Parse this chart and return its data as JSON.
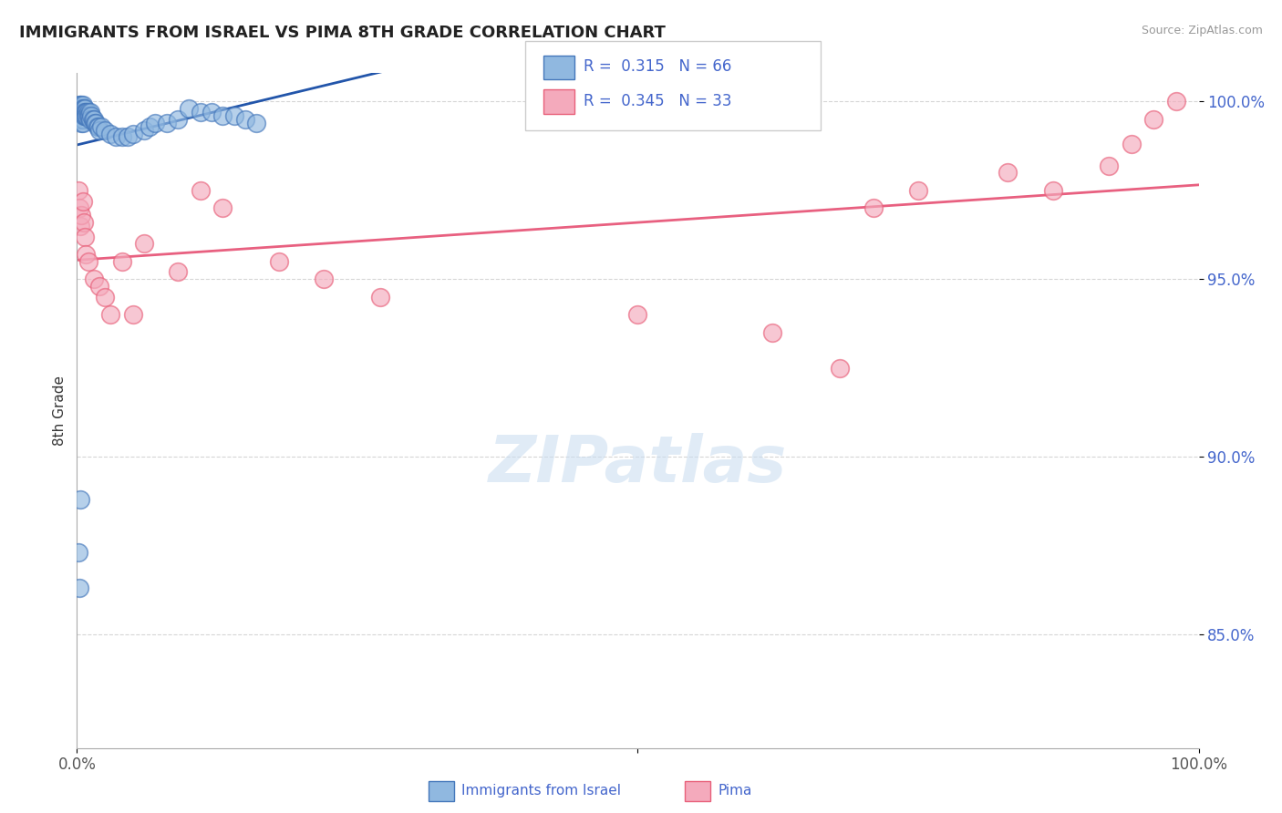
{
  "title": "IMMIGRANTS FROM ISRAEL VS PIMA 8TH GRADE CORRELATION CHART",
  "source": "Source: ZipAtlas.com",
  "ylabel": "8th Grade",
  "legend_label1": "Immigrants from Israel",
  "legend_label2": "Pima",
  "R1": 0.315,
  "N1": 66,
  "R2": 0.345,
  "N2": 33,
  "xlim": [
    0.0,
    1.0
  ],
  "ylim": [
    0.818,
    1.008
  ],
  "ytick_positions": [
    0.85,
    0.9,
    0.95,
    1.0
  ],
  "ytick_labels": [
    "85.0%",
    "90.0%",
    "95.0%",
    "100.0%"
  ],
  "color_blue": "#90B8E0",
  "color_pink": "#F4AABC",
  "edge_blue": "#4477BB",
  "edge_pink": "#E8607A",
  "trendline_blue": "#2255AA",
  "trendline_pink": "#E86080",
  "background": "#FFFFFF",
  "blue_x": [
    0.001,
    0.001,
    0.002,
    0.002,
    0.002,
    0.003,
    0.003,
    0.003,
    0.003,
    0.004,
    0.004,
    0.004,
    0.004,
    0.004,
    0.004,
    0.005,
    0.005,
    0.005,
    0.005,
    0.005,
    0.005,
    0.006,
    0.006,
    0.006,
    0.007,
    0.007,
    0.007,
    0.008,
    0.008,
    0.009,
    0.009,
    0.01,
    0.01,
    0.011,
    0.012,
    0.012,
    0.013,
    0.014,
    0.015,
    0.016,
    0.017,
    0.018,
    0.019,
    0.02,
    0.022,
    0.025,
    0.03,
    0.035,
    0.04,
    0.045,
    0.05,
    0.06,
    0.065,
    0.07,
    0.08,
    0.09,
    0.1,
    0.11,
    0.12,
    0.13,
    0.14,
    0.15,
    0.16,
    0.001,
    0.002,
    0.003
  ],
  "blue_y": [
    0.998,
    0.996,
    0.999,
    0.997,
    0.995,
    0.999,
    0.998,
    0.997,
    0.996,
    0.999,
    0.998,
    0.997,
    0.996,
    0.995,
    0.994,
    0.999,
    0.998,
    0.997,
    0.996,
    0.995,
    0.994,
    0.998,
    0.997,
    0.996,
    0.998,
    0.997,
    0.996,
    0.997,
    0.996,
    0.997,
    0.996,
    0.997,
    0.996,
    0.996,
    0.997,
    0.995,
    0.996,
    0.995,
    0.995,
    0.994,
    0.994,
    0.993,
    0.993,
    0.992,
    0.993,
    0.992,
    0.991,
    0.99,
    0.99,
    0.99,
    0.991,
    0.992,
    0.993,
    0.994,
    0.994,
    0.995,
    0.998,
    0.997,
    0.997,
    0.996,
    0.996,
    0.995,
    0.994,
    0.873,
    0.863,
    0.888
  ],
  "pink_x": [
    0.001,
    0.002,
    0.003,
    0.004,
    0.005,
    0.006,
    0.007,
    0.008,
    0.01,
    0.015,
    0.02,
    0.025,
    0.03,
    0.04,
    0.05,
    0.06,
    0.09,
    0.11,
    0.13,
    0.18,
    0.22,
    0.27,
    0.5,
    0.62,
    0.68,
    0.71,
    0.75,
    0.83,
    0.87,
    0.92,
    0.94,
    0.96,
    0.98
  ],
  "pink_y": [
    0.975,
    0.97,
    0.965,
    0.968,
    0.972,
    0.966,
    0.962,
    0.957,
    0.955,
    0.95,
    0.948,
    0.945,
    0.94,
    0.955,
    0.94,
    0.96,
    0.952,
    0.975,
    0.97,
    0.955,
    0.95,
    0.945,
    0.94,
    0.935,
    0.925,
    0.97,
    0.975,
    0.98,
    0.975,
    0.982,
    0.988,
    0.995,
    1.0
  ]
}
